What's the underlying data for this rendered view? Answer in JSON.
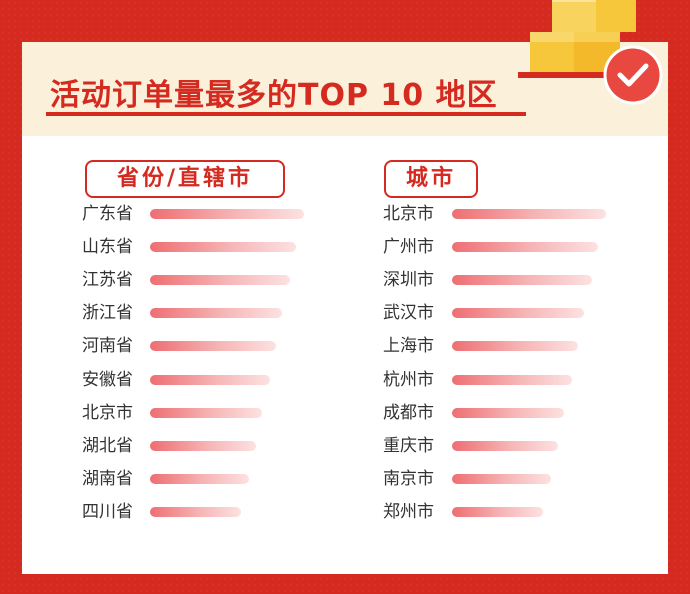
{
  "title": "活动订单量最多的TOP 10 地区",
  "colors": {
    "background_red": "#d42a20",
    "header_cream": "#fbf0da",
    "box_yellow": "#f6c63b",
    "bar_start": "#ee6e72",
    "bar_end": "#fde1e1"
  },
  "icons": [
    "cube-boxes-icon",
    "checkmark-badge-icon"
  ],
  "chart_data": [
    {
      "type": "bar",
      "orientation": "horizontal",
      "title": "省份/直辖市",
      "categories": [
        "广东省",
        "山东省",
        "江苏省",
        "浙江省",
        "河南省",
        "安徽省",
        "北京市",
        "湖北省",
        "湖南省",
        "四川省"
      ],
      "values": [
        10,
        9.5,
        9.1,
        8.6,
        8.2,
        7.8,
        7.3,
        6.9,
        6.4,
        5.9
      ],
      "grid": false,
      "xlabel": "",
      "ylabel": ""
    },
    {
      "type": "bar",
      "orientation": "horizontal",
      "title": "城市",
      "categories": [
        "北京市",
        "广州市",
        "深圳市",
        "武汉市",
        "上海市",
        "杭州市",
        "成都市",
        "重庆市",
        "南京市",
        "郑州市"
      ],
      "values": [
        10,
        9.5,
        9.1,
        8.6,
        8.2,
        7.8,
        7.3,
        6.9,
        6.4,
        5.9
      ],
      "grid": false,
      "xlabel": "",
      "ylabel": ""
    }
  ]
}
